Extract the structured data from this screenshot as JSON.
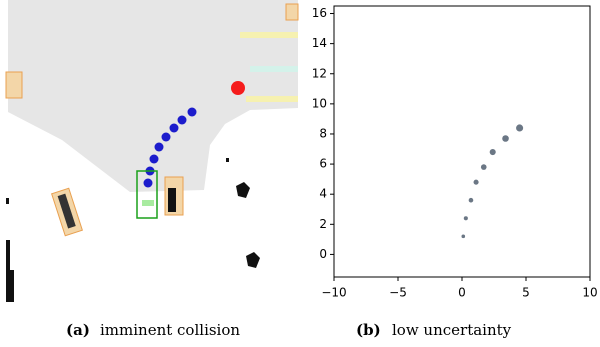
{
  "chart_data": {
    "type": "scatter",
    "x": [
      0.1,
      0.3,
      0.7,
      1.1,
      1.7,
      2.4,
      3.4,
      4.5
    ],
    "values": [
      1.2,
      2.4,
      3.6,
      4.8,
      5.8,
      6.8,
      7.7,
      8.4
    ],
    "color": "#6b7785",
    "xlim": [
      -10,
      10
    ],
    "ylim": [
      -1.5,
      16.5
    ],
    "xticks": [
      {
        "value": -10,
        "label": "−10"
      },
      {
        "value": -5,
        "label": "−5"
      },
      0,
      5,
      10
    ],
    "yticks": [
      0,
      2,
      4,
      6,
      8,
      10,
      12,
      14,
      16
    ]
  },
  "captions": [
    {
      "label": "(a)",
      "text": "imminent collision"
    },
    {
      "label": "(b)",
      "text": "low uncertainty"
    }
  ]
}
